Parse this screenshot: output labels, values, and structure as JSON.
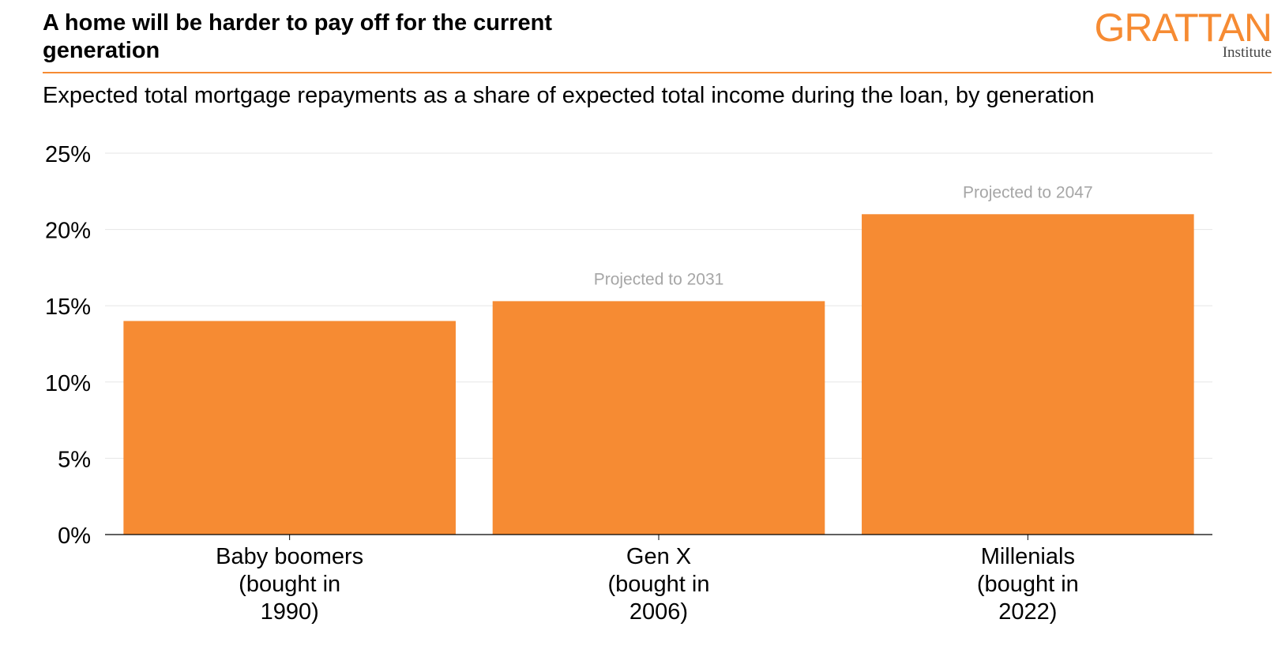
{
  "header": {
    "title": "A home will be harder to pay off for the current generation",
    "logo_word": "GRATTAN",
    "logo_sub": "Institute"
  },
  "subtitle": "Expected total mortgage repayments as a share of expected total income during the loan, by generation",
  "colors": {
    "accent": "#f68b33",
    "bar": "#f68b33",
    "annotation": "#a6a6a6",
    "grid": "#e6e6e6",
    "axis": "#000000"
  },
  "chart_data": {
    "type": "bar",
    "categories": [
      [
        "Baby boomers",
        "(bought in",
        "1990)"
      ],
      [
        "Gen X",
        "(bought in",
        "2006)"
      ],
      [
        "Millenials",
        "(bought in",
        "2022)"
      ]
    ],
    "values": [
      14.0,
      15.3,
      21.0
    ],
    "annotations": [
      "",
      "Projected to 2031",
      "Projected to 2047"
    ],
    "ylim": [
      0,
      25
    ],
    "yticks": [
      0,
      5,
      10,
      15,
      20,
      25
    ],
    "ytick_labels": [
      "0%",
      "5%",
      "10%",
      "15%",
      "20%",
      "25%"
    ],
    "grid": true,
    "xlabel": "",
    "ylabel": ""
  }
}
